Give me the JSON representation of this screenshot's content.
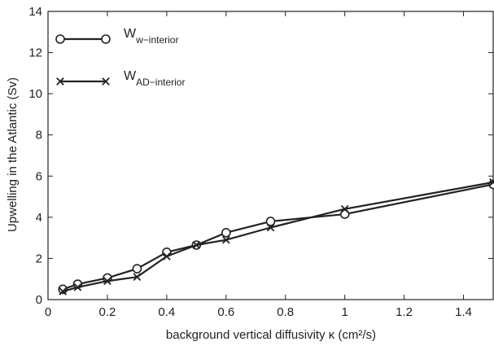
{
  "chart_data": {
    "type": "line",
    "xlabel": "background vertical diffusivity κ (cm²/s)",
    "ylabel": "Upwelling in the Atlantic (Sv)",
    "xlim": [
      0,
      1.5
    ],
    "ylim": [
      0,
      14
    ],
    "xticks": [
      0,
      0.2,
      0.4,
      0.6,
      0.8,
      1,
      1.2,
      1.4
    ],
    "xtick_labels": [
      "0",
      "0.2",
      "0.4",
      "0.6",
      "0.8",
      "1",
      "1.2",
      "1.4"
    ],
    "yticks": [
      0,
      2,
      4,
      6,
      8,
      10,
      12,
      14
    ],
    "ytick_labels": [
      "0",
      "2",
      "4",
      "6",
      "8",
      "10",
      "12",
      "14"
    ],
    "grid": false,
    "legend_position": "top-left",
    "series": [
      {
        "name_main": "W",
        "name_sub": "w−interior",
        "marker": "circle",
        "color": "#222222",
        "x": [
          0.05,
          0.1,
          0.2,
          0.3,
          0.4,
          0.5,
          0.6,
          0.75,
          1.0,
          1.5
        ],
        "y": [
          0.5,
          0.75,
          1.05,
          1.5,
          2.3,
          2.65,
          3.25,
          3.8,
          4.15,
          5.6
        ]
      },
      {
        "name_main": "W",
        "name_sub": "AD−interior",
        "marker": "x",
        "color": "#222222",
        "x": [
          0.05,
          0.1,
          0.2,
          0.3,
          0.4,
          0.5,
          0.6,
          0.75,
          1.0,
          1.5
        ],
        "y": [
          0.4,
          0.6,
          0.9,
          1.1,
          2.1,
          2.65,
          2.9,
          3.5,
          4.4,
          5.7
        ]
      }
    ]
  }
}
